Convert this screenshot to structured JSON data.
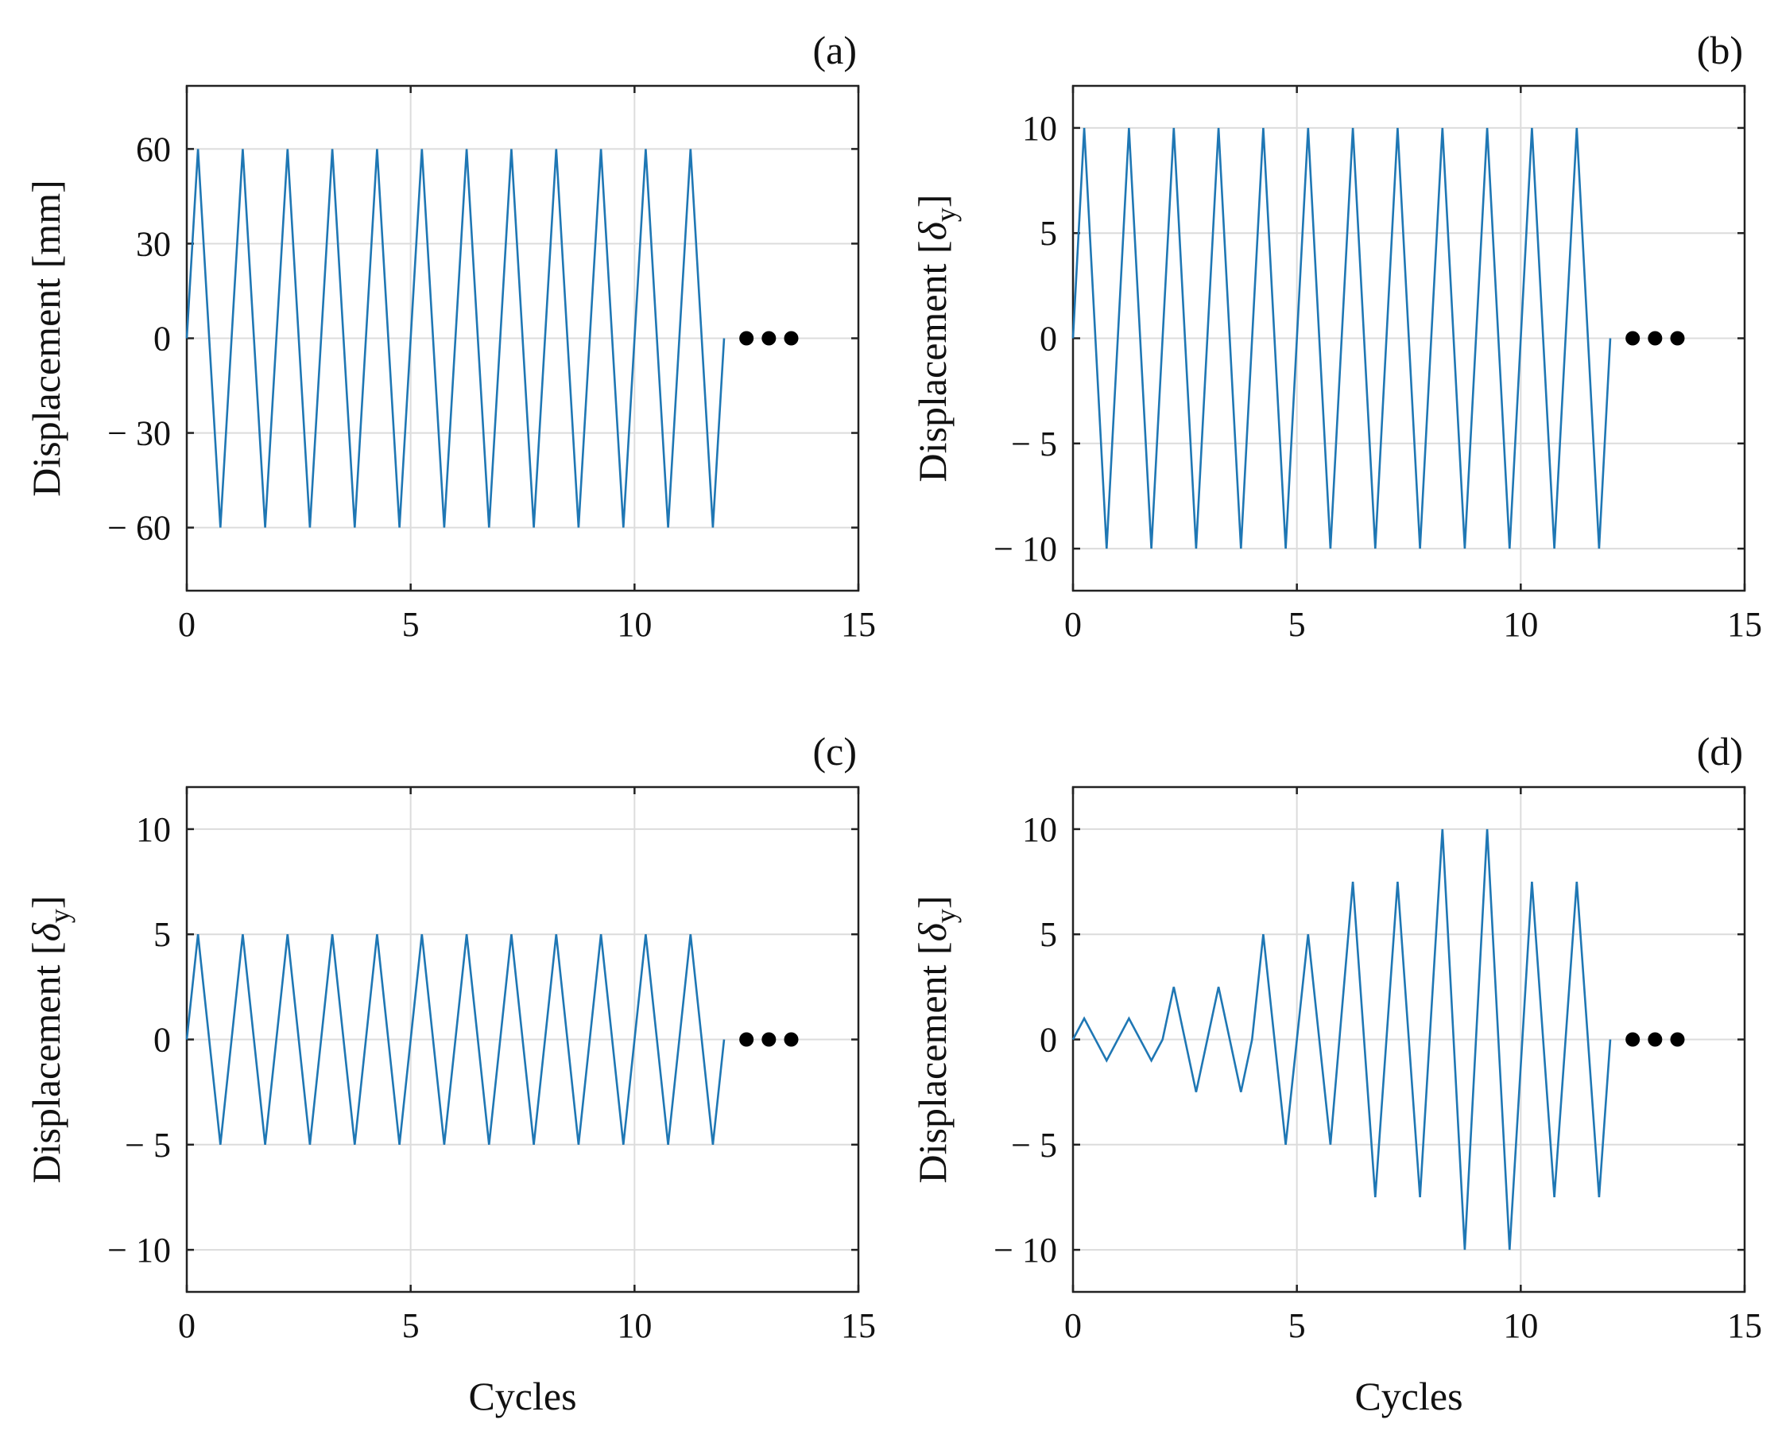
{
  "figure": {
    "accent_color": "#1f77b4",
    "ellipsis_color": "#000000"
  },
  "chart_data": [
    {
      "type": "line",
      "panel_label": "(a)",
      "title": "",
      "xlabel": "",
      "ylabel": "Displacement [mm]",
      "xlim": [
        0,
        15
      ],
      "ylim": [
        -80,
        80
      ],
      "xticks": [
        0,
        5,
        10,
        15
      ],
      "yticks": [
        -60,
        -30,
        0,
        30,
        60
      ],
      "ytick_labels": [
        "− 60",
        "− 30",
        "0",
        "30",
        "60"
      ],
      "grid": true,
      "series": [
        {
          "name": "displacement",
          "x": [
            0,
            0.25,
            0.75,
            1.25,
            1.75,
            2.25,
            2.75,
            3.25,
            3.75,
            4.25,
            4.75,
            5.25,
            5.75,
            6.25,
            6.75,
            7.25,
            7.75,
            8.25,
            8.75,
            9.25,
            9.75,
            10.25,
            10.75,
            11.25,
            11.75,
            12.0
          ],
          "y": [
            0,
            60,
            -60,
            60,
            -60,
            60,
            -60,
            60,
            -60,
            60,
            -60,
            60,
            -60,
            60,
            -60,
            60,
            -60,
            60,
            -60,
            60,
            -60,
            60,
            -60,
            60,
            -60,
            0
          ]
        }
      ],
      "continuation_dots": [
        12.5,
        13.0,
        13.5
      ]
    },
    {
      "type": "line",
      "panel_label": "(b)",
      "title": "",
      "xlabel": "",
      "ylabel": "Displacement [δy]",
      "ylabel_main": "Displacement [",
      "ylabel_symbol": "δ",
      "ylabel_subscript": "y",
      "ylabel_close": "]",
      "xlim": [
        0,
        15
      ],
      "ylim": [
        -12,
        12
      ],
      "xticks": [
        0,
        5,
        10,
        15
      ],
      "yticks": [
        -10,
        -5,
        0,
        5,
        10
      ],
      "ytick_labels": [
        "− 10",
        "− 5",
        "0",
        "5",
        "10"
      ],
      "grid": true,
      "series": [
        {
          "name": "displacement",
          "x": [
            0,
            0.25,
            0.75,
            1.25,
            1.75,
            2.25,
            2.75,
            3.25,
            3.75,
            4.25,
            4.75,
            5.25,
            5.75,
            6.25,
            6.75,
            7.25,
            7.75,
            8.25,
            8.75,
            9.25,
            9.75,
            10.25,
            10.75,
            11.25,
            11.75,
            12.0
          ],
          "y": [
            0,
            10,
            -10,
            10,
            -10,
            10,
            -10,
            10,
            -10,
            10,
            -10,
            10,
            -10,
            10,
            -10,
            10,
            -10,
            10,
            -10,
            10,
            -10,
            10,
            -10,
            10,
            -10,
            0
          ]
        }
      ],
      "continuation_dots": [
        12.5,
        13.0,
        13.5
      ]
    },
    {
      "type": "line",
      "panel_label": "(c)",
      "title": "",
      "xlabel": "Cycles",
      "ylabel": "Displacement [δy]",
      "ylabel_main": "Displacement [",
      "ylabel_symbol": "δ",
      "ylabel_subscript": "y",
      "ylabel_close": "]",
      "xlim": [
        0,
        15
      ],
      "ylim": [
        -12,
        12
      ],
      "xticks": [
        0,
        5,
        10,
        15
      ],
      "yticks": [
        -10,
        -5,
        0,
        5,
        10
      ],
      "ytick_labels": [
        "− 10",
        "− 5",
        "0",
        "5",
        "10"
      ],
      "grid": true,
      "series": [
        {
          "name": "displacement",
          "x": [
            0,
            0.25,
            0.75,
            1.25,
            1.75,
            2.25,
            2.75,
            3.25,
            3.75,
            4.25,
            4.75,
            5.25,
            5.75,
            6.25,
            6.75,
            7.25,
            7.75,
            8.25,
            8.75,
            9.25,
            9.75,
            10.25,
            10.75,
            11.25,
            11.75,
            12.0
          ],
          "y": [
            0,
            5,
            -5,
            5,
            -5,
            5,
            -5,
            5,
            -5,
            5,
            -5,
            5,
            -5,
            5,
            -5,
            5,
            -5,
            5,
            -5,
            5,
            -5,
            5,
            -5,
            5,
            -5,
            0
          ]
        }
      ],
      "continuation_dots": [
        12.5,
        13.0,
        13.5
      ]
    },
    {
      "type": "line",
      "panel_label": "(d)",
      "title": "",
      "xlabel": "Cycles",
      "ylabel": "Displacement [δy]",
      "ylabel_main": "Displacement [",
      "ylabel_symbol": "δ",
      "ylabel_subscript": "y",
      "ylabel_close": "]",
      "xlim": [
        0,
        15
      ],
      "ylim": [
        -12,
        12
      ],
      "xticks": [
        0,
        5,
        10,
        15
      ],
      "yticks": [
        -10,
        -5,
        0,
        5,
        10
      ],
      "ytick_labels": [
        "− 10",
        "− 5",
        "0",
        "5",
        "10"
      ],
      "grid": true,
      "series": [
        {
          "name": "displacement",
          "x": [
            0,
            0.25,
            0.75,
            1.25,
            1.75,
            2.0,
            2.25,
            2.75,
            3.25,
            3.75,
            4.0,
            4.25,
            4.75,
            5.25,
            5.75,
            6.25,
            6.75,
            7.25,
            7.75,
            8.25,
            8.75,
            9.25,
            9.75,
            10.25,
            10.75,
            11.25,
            11.75,
            12.0
          ],
          "y": [
            0,
            1,
            -1,
            1,
            -1,
            0,
            2.5,
            -2.5,
            2.5,
            -2.5,
            0,
            5,
            -5,
            5,
            -5,
            7.5,
            -7.5,
            7.5,
            -7.5,
            10,
            -10,
            10,
            -10,
            7.5,
            -7.5,
            7.5,
            -7.5,
            0
          ]
        }
      ],
      "continuation_dots": [
        12.5,
        13.0,
        13.5
      ]
    }
  ]
}
